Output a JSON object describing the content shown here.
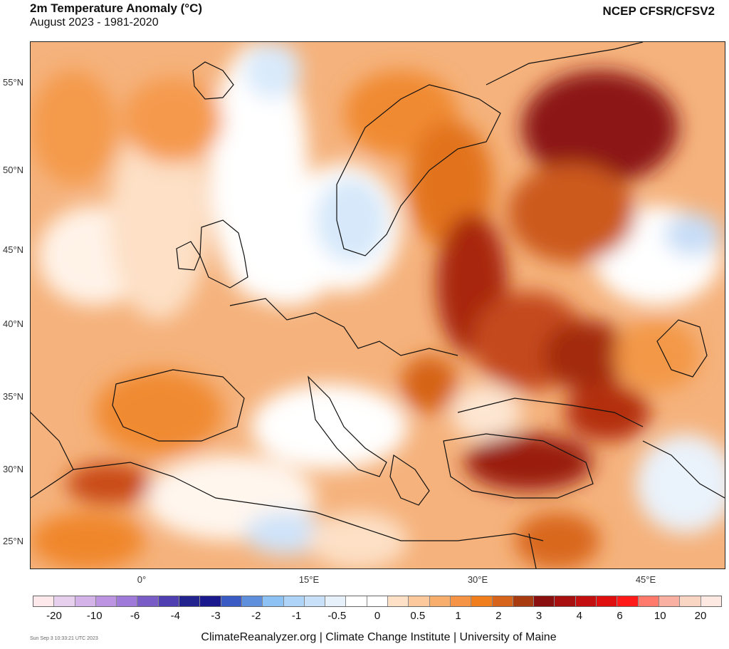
{
  "header": {
    "title": "2m Temperature Anomaly (°C)",
    "subtitle": "August 2023 - 1981-2020",
    "source": "NCEP CFSR/CFSV2"
  },
  "axes": {
    "lat_labels": [
      "55°N",
      "50°N",
      "45°N",
      "40°N",
      "35°N",
      "30°N",
      "25°N"
    ],
    "lon_labels": [
      "0°",
      "15°E",
      "30°E",
      "45°E"
    ]
  },
  "colorbar": {
    "colors": [
      "#fde8ec",
      "#e6d0ee",
      "#d4b3e9",
      "#bd94e2",
      "#a07ad8",
      "#7a5cc6",
      "#4f3fb0",
      "#24248f",
      "#1a1a8e",
      "#3a5bc4",
      "#5e8fdc",
      "#8cc2f4",
      "#aed4f7",
      "#c8e1f8",
      "#e6f1fb",
      "#ffffff",
      "#ffffff",
      "#fde0c6",
      "#fbc99c",
      "#f8ae6d",
      "#f59444",
      "#f07e1c",
      "#d6641a",
      "#a83b0f",
      "#8a0f0f",
      "#a81010",
      "#c40f0f",
      "#e00f0f",
      "#ff1a1a",
      "#ff7a6b",
      "#f9b0a0",
      "#f9d6c3",
      "#fde9e1"
    ],
    "labels": [
      "-20",
      "-10",
      "-6",
      "-4",
      "-3",
      "-2",
      "-1",
      "-0.5",
      "0",
      "0.5",
      "1",
      "2",
      "3",
      "4",
      "6",
      "10",
      "20"
    ]
  },
  "footer": {
    "credit": "ClimateReanalyzer.org | Climate Change Institute | University of Maine",
    "timestamp": "Sun Sep  3 10:33:21 UTC 2023"
  }
}
